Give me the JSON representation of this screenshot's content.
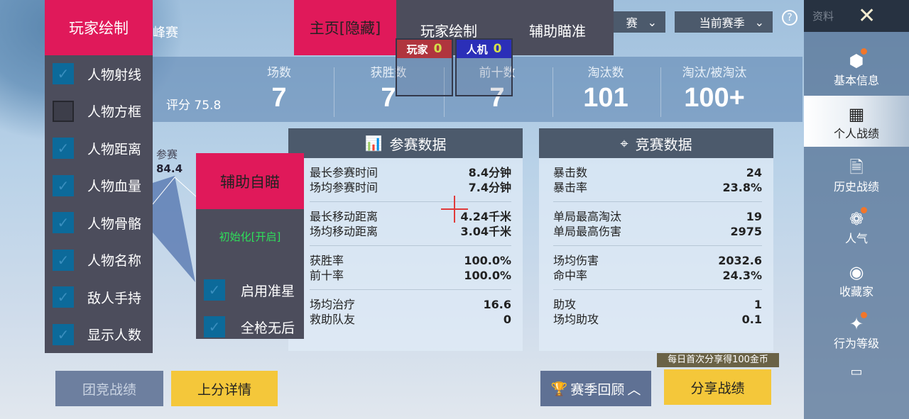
{
  "game_tab_partial": "峰赛",
  "rating": {
    "label": "评分 75.8"
  },
  "radar": {
    "label": "参赛",
    "value": "84.4"
  },
  "stats": [
    {
      "label": "场数",
      "value": "7"
    },
    {
      "label": "获胜数",
      "value": "7"
    },
    {
      "label": "前十数",
      "value": "7"
    },
    {
      "label": "淘汰数",
      "value": "101"
    },
    {
      "label": "淘汰/被淘汰",
      "value": "100+"
    }
  ],
  "dropdowns": {
    "mode_partial": "赛",
    "season": "当前赛季"
  },
  "help_icon": "question-circle-icon",
  "cards": {
    "participation": {
      "title": "参赛数据",
      "icon": "bar-chart-icon",
      "groups": [
        [
          {
            "label": "最长参赛时间",
            "value": "8.4分钟"
          },
          {
            "label": "场均参赛时间",
            "value": "7.4分钟"
          }
        ],
        [
          {
            "label": "最长移动距离",
            "value": "4.24千米"
          },
          {
            "label": "场均移动距离",
            "value": "3.04千米"
          }
        ],
        [
          {
            "label": "获胜率",
            "value": "100.0%"
          },
          {
            "label": "前十率",
            "value": "100.0%"
          }
        ],
        [
          {
            "label": "场均治疗",
            "value": "16.6"
          },
          {
            "label": "救助队友",
            "value": "0"
          }
        ]
      ]
    },
    "competition": {
      "title": "竞赛数据",
      "icon": "crosshair-icon",
      "groups": [
        [
          {
            "label": "暴击数",
            "value": "24"
          },
          {
            "label": "暴击率",
            "value": "23.8%"
          }
        ],
        [
          {
            "label": "单局最高淘汰",
            "value": "19"
          },
          {
            "label": "单局最高伤害",
            "value": "2975"
          }
        ],
        [
          {
            "label": "场均伤害",
            "value": "2032.6"
          },
          {
            "label": "命中率",
            "value": "24.3%"
          }
        ],
        [
          {
            "label": "助攻",
            "value": "1"
          },
          {
            "label": "场均助攻",
            "value": "0.1"
          }
        ]
      ]
    }
  },
  "bottom": {
    "team_stats": "团竞战绩",
    "rank_details": "上分详情",
    "season_review": "赛季回顾",
    "share": "分享战绩",
    "share_badge": "每日首次分享得100金币"
  },
  "sidebar": {
    "title": "资料",
    "items": [
      {
        "label": "基本信息",
        "dot": true
      },
      {
        "label": "个人战绩",
        "active": true
      },
      {
        "label": "历史战绩"
      },
      {
        "label": "人气",
        "dot": true
      },
      {
        "label": "收藏家"
      },
      {
        "label": "行为等级",
        "dot": true
      }
    ]
  },
  "overlay": {
    "home_tab": "主页[隐藏]",
    "tab_player_draw": "玩家绘制",
    "tab_aim": "辅助瞄准",
    "tag_player": "玩家",
    "tag_player_count": "0",
    "tag_bot": "人机",
    "tag_bot_count": "0",
    "tag_player_color": "#b0353e",
    "tag_bot_color": "#2b2fb8",
    "menu": {
      "title": "玩家绘制",
      "items": [
        {
          "label": "人物射线",
          "checked": true
        },
        {
          "label": "人物方框",
          "checked": false
        },
        {
          "label": "人物距离",
          "checked": true
        },
        {
          "label": "人物血量",
          "checked": true
        },
        {
          "label": "人物骨骼",
          "checked": true
        },
        {
          "label": "人物名称",
          "checked": true
        },
        {
          "label": "敌人手持",
          "checked": true
        },
        {
          "label": "显示人数",
          "checked": true
        }
      ]
    },
    "aim": {
      "title": "辅助自瞄",
      "status": "初始化[开启]",
      "items": [
        {
          "label": "启用准星",
          "checked": true
        },
        {
          "label": "全枪无后",
          "checked": true
        }
      ]
    },
    "accent": "#e0195a",
    "panel": "#4c4d5c"
  }
}
